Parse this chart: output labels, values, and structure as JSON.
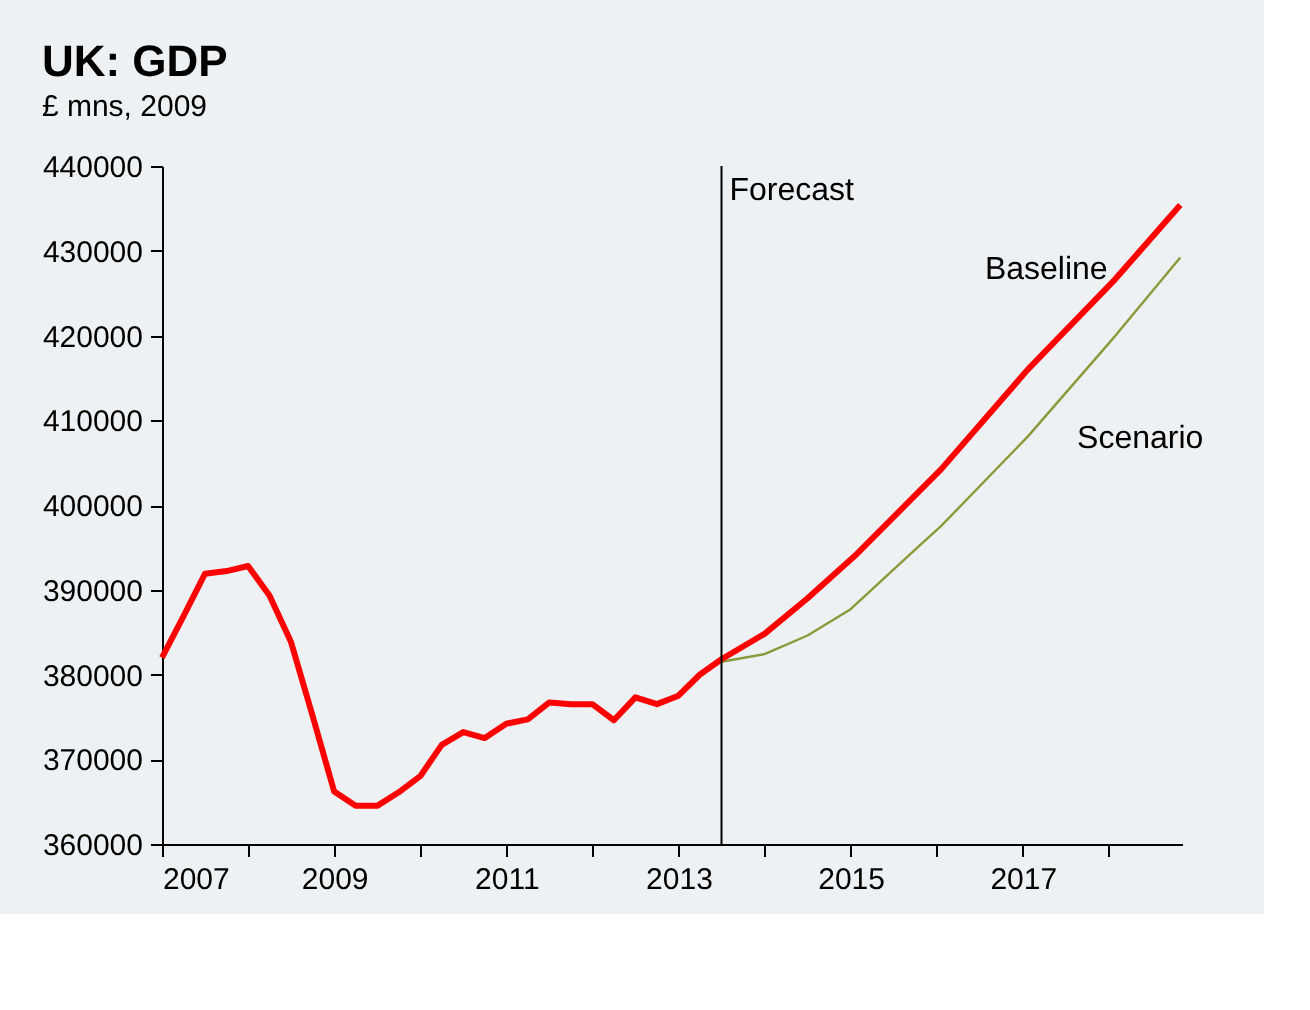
{
  "chart_data": {
    "type": "line",
    "title": "UK: GDP",
    "subtitle": "£ mns, 2009",
    "xlim": [
      2007,
      2018.85
    ],
    "xticks": [
      2007,
      {
        "value": 2008,
        "label": null
      },
      2009,
      {
        "value": 2010,
        "label": null
      },
      2011,
      {
        "value": 2012,
        "label": null
      },
      2013,
      {
        "value": 2014,
        "label": null
      },
      2015,
      {
        "value": 2016,
        "label": null
      },
      2017,
      {
        "value": 2018,
        "label": null
      }
    ],
    "ylim": [
      360000,
      440000
    ],
    "yticks": [
      360000,
      370000,
      380000,
      390000,
      400000,
      410000,
      420000,
      430000,
      440000
    ],
    "grid": false,
    "marker": "none",
    "line_style": "solid",
    "ref_lines": [
      {
        "axis": "x",
        "value": 2013.5,
        "label": "Forecast",
        "color": "#000000"
      }
    ],
    "series": [
      {
        "name": "Scenario",
        "color": "#8a9a3a",
        "x": [
          2013.5,
          2014.0,
          2014.5,
          2015.0,
          2015.8,
          2016.05,
          2017.06,
          2018.07,
          2018.83
        ],
        "values": [
          381500,
          382400,
          384600,
          387700,
          395200,
          397500,
          408100,
          419900,
          429200
        ]
      },
      {
        "name": "Baseline",
        "color": "#ff0000",
        "x": [
          2007,
          2007.25,
          2007.5,
          2007.75,
          2008,
          2008.25,
          2008.5,
          2008.75,
          2009,
          2009.25,
          2009.5,
          2009.75,
          2010,
          2010.25,
          2010.5,
          2010.75,
          2011,
          2011.25,
          2011.5,
          2011.75,
          2012,
          2012.25,
          2012.5,
          2012.75,
          2013,
          2013.25,
          2013.5,
          2014.0,
          2014.5,
          2015.05,
          2016.05,
          2017.06,
          2018.07,
          2018.83
        ],
        "values": [
          382000,
          386900,
          391900,
          392200,
          392800,
          389300,
          383800,
          375100,
          366200,
          364500,
          364500,
          366100,
          368000,
          371700,
          373200,
          372500,
          374200,
          374700,
          376700,
          376500,
          376500,
          374600,
          377300,
          376500,
          377500,
          380000,
          381800,
          384800,
          389000,
          394000,
          404200,
          416000,
          426600,
          435400
        ]
      }
    ]
  }
}
